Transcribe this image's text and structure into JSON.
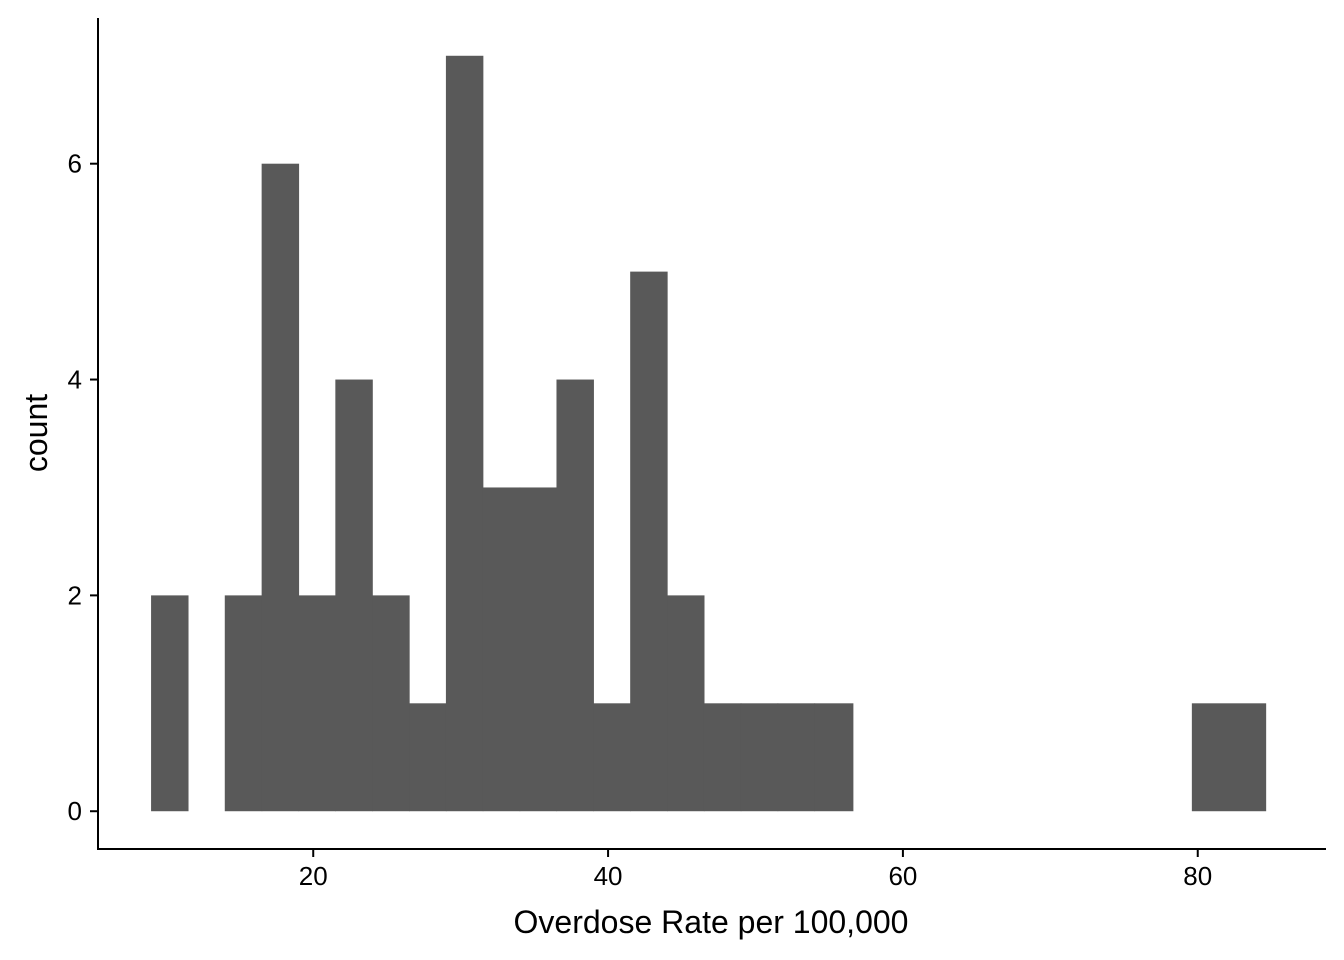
{
  "chart_data": {
    "type": "bar",
    "subtype": "histogram",
    "xlabel": "Overdose Rate per 100,000",
    "ylabel": "count",
    "xlim": [
      5.4,
      88.7
    ],
    "ylim": [
      -0.35,
      7.35
    ],
    "x_ticks": [
      20,
      40,
      60,
      80
    ],
    "y_ticks": [
      0,
      2,
      4,
      6
    ],
    "bar_color": "#595959",
    "bins": [
      {
        "x0": 9.0,
        "x1": 11.5,
        "count": 2
      },
      {
        "x0": 11.5,
        "x1": 14.0,
        "count": 0
      },
      {
        "x0": 14.0,
        "x1": 16.5,
        "count": 2
      },
      {
        "x0": 16.5,
        "x1": 19.0,
        "count": 6
      },
      {
        "x0": 19.0,
        "x1": 21.5,
        "count": 2
      },
      {
        "x0": 21.5,
        "x1": 24.0,
        "count": 4
      },
      {
        "x0": 24.0,
        "x1": 26.5,
        "count": 2
      },
      {
        "x0": 26.5,
        "x1": 29.0,
        "count": 1
      },
      {
        "x0": 29.0,
        "x1": 31.5,
        "count": 7
      },
      {
        "x0": 31.5,
        "x1": 34.0,
        "count": 3
      },
      {
        "x0": 34.0,
        "x1": 36.5,
        "count": 3
      },
      {
        "x0": 36.5,
        "x1": 39.0,
        "count": 4
      },
      {
        "x0": 39.0,
        "x1": 41.5,
        "count": 1
      },
      {
        "x0": 41.5,
        "x1": 44.0,
        "count": 5
      },
      {
        "x0": 44.0,
        "x1": 46.5,
        "count": 2
      },
      {
        "x0": 46.5,
        "x1": 49.0,
        "count": 1
      },
      {
        "x0": 49.0,
        "x1": 51.5,
        "count": 1
      },
      {
        "x0": 51.5,
        "x1": 54.0,
        "count": 1
      },
      {
        "x0": 54.0,
        "x1": 56.6,
        "count": 1
      },
      {
        "x0": 79.6,
        "x1": 84.6,
        "count": 1
      }
    ]
  }
}
